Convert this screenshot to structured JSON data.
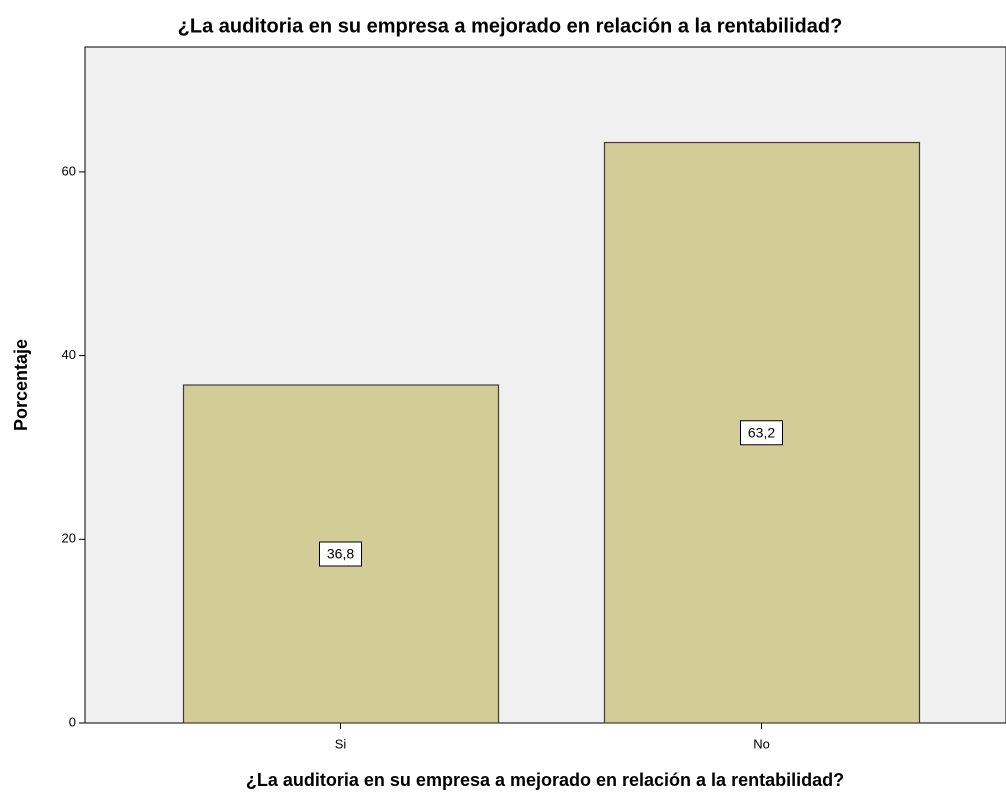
{
  "chart_data": {
    "type": "bar",
    "title": "¿La auditoria en su empresa a mejorado en relación a la rentabilidad?",
    "x_label": "¿La auditoria en su empresa a mejorado en relación a la rentabilidad?",
    "y_label": "Porcentaje",
    "categories": [
      "Si",
      "No"
    ],
    "values": [
      36.8,
      63.2
    ],
    "value_labels": [
      "36,8",
      "63,2"
    ],
    "color": "#d2cc96",
    "ylim": [
      0,
      73.6
    ],
    "yticks": [
      0,
      20,
      40,
      60
    ]
  }
}
